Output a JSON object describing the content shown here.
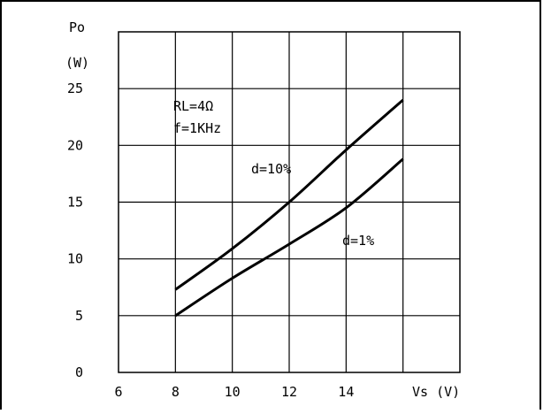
{
  "chart_data": {
    "type": "line",
    "title": "",
    "ylabel_line1": "Po",
    "ylabel_line2": "(W)",
    "xlabel": "Vs (V)",
    "xlim": [
      6,
      18
    ],
    "ylim": [
      0,
      30
    ],
    "x_ticks": [
      6,
      8,
      10,
      12,
      14
    ],
    "y_ticks": [
      0,
      5,
      10,
      15,
      20,
      25
    ],
    "grid": true,
    "annotations": {
      "conditions_line1": "RL=4Ω",
      "conditions_line2": "f=1KHz"
    },
    "series": [
      {
        "name": "d=10%",
        "x": [
          8,
          10,
          12,
          14,
          16
        ],
        "y": [
          7.3,
          10.9,
          15.0,
          19.6,
          24.0
        ]
      },
      {
        "name": "d=1%",
        "x": [
          8,
          10,
          12,
          14,
          16
        ],
        "y": [
          5.0,
          8.3,
          11.3,
          14.5,
          18.8
        ]
      }
    ],
    "colors": {
      "line": "#000000",
      "grid": "#000000",
      "background": "#ffffff"
    }
  }
}
